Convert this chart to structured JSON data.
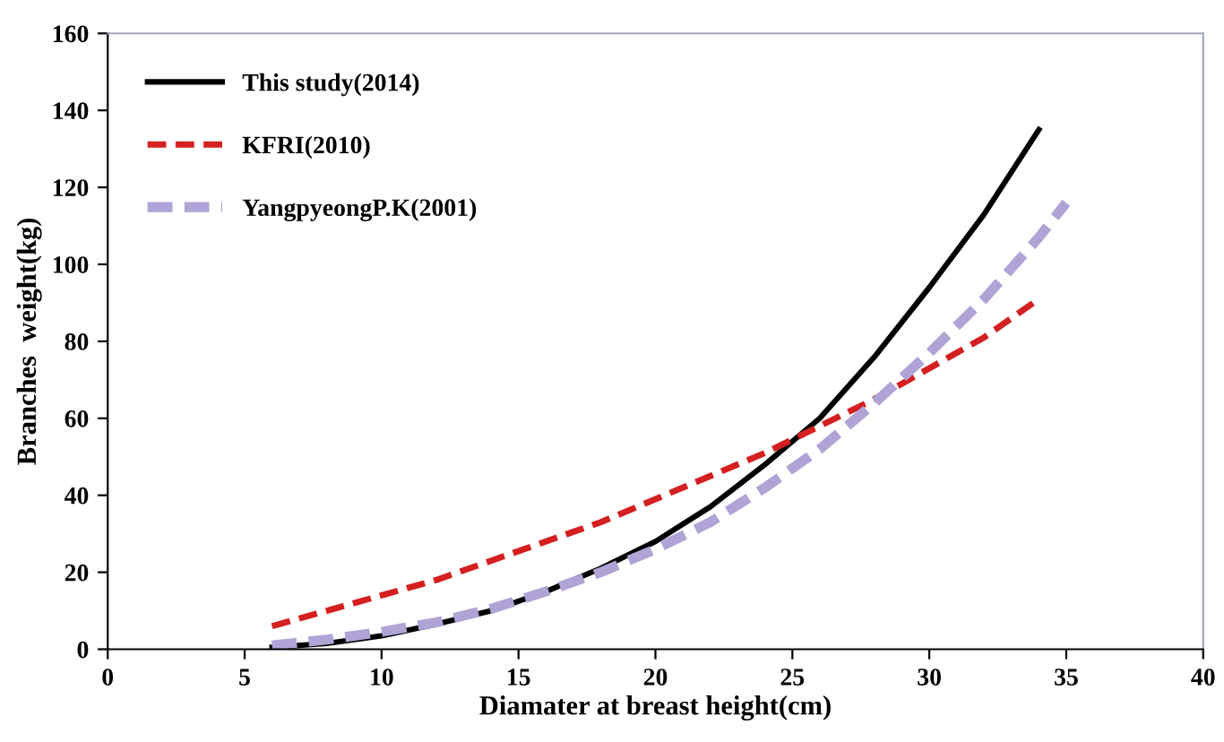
{
  "chart_data": {
    "type": "line",
    "xlabel": "Diamater at breast height(cm)",
    "ylabel": "Branches  weight(kg)",
    "xlim": [
      0,
      40
    ],
    "xticks": [
      0,
      5,
      10,
      15,
      20,
      25,
      30,
      35,
      40
    ],
    "ylim": [
      0,
      160
    ],
    "yticks": [
      0,
      20,
      40,
      60,
      80,
      100,
      120,
      140,
      160
    ],
    "grid": false,
    "legend": "top left",
    "marker": "none",
    "series": [
      {
        "name": "This study(2014)",
        "color": "#000000",
        "line_style": "solid",
        "x": [
          6,
          8,
          10,
          12,
          14,
          16,
          18,
          20,
          22,
          24,
          26,
          28,
          30,
          32,
          34
        ],
        "values": [
          0.5,
          1.5,
          3.5,
          6.5,
          10,
          15,
          21,
          28,
          37,
          48,
          60,
          76,
          94,
          113,
          135
        ]
      },
      {
        "name": "KFRI(2010)",
        "color": "#d42020",
        "line_style": "dashed",
        "x": [
          6,
          8,
          10,
          12,
          14,
          16,
          18,
          20,
          22,
          24,
          26,
          28,
          30,
          32,
          34
        ],
        "values": [
          6,
          10,
          14,
          18,
          23,
          28,
          33,
          39,
          45,
          51,
          58,
          65,
          73,
          81,
          91
        ]
      },
      {
        "name": "YangpyeongP.K(2001)",
        "color": "#b0a3d6",
        "line_style": "dashed",
        "x": [
          6,
          8,
          10,
          12,
          14,
          16,
          18,
          20,
          22,
          24,
          26,
          28,
          30,
          32,
          34,
          35
        ],
        "values": [
          1,
          2.5,
          4.5,
          7,
          10.5,
          15,
          20,
          26,
          33,
          42,
          52,
          64,
          77,
          91,
          107,
          116
        ]
      }
    ]
  }
}
